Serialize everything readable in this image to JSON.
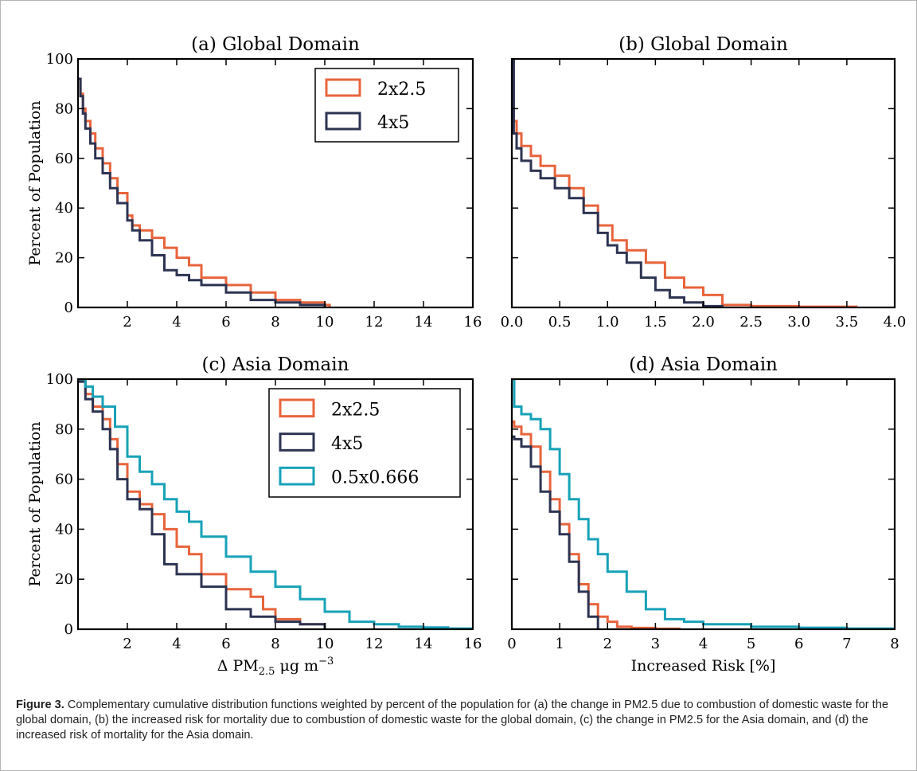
{
  "chart_data": [
    {
      "id": "a",
      "type": "line",
      "title": "(a) Global Domain",
      "xlabel": "",
      "ylabel": "Percent of Population",
      "xlim": [
        0,
        16
      ],
      "ylim": [
        0,
        100
      ],
      "xticks": [
        2,
        4,
        6,
        8,
        10,
        12,
        14,
        16
      ],
      "xtick_labels": [
        "2",
        "4",
        "6",
        "8",
        "10",
        "12",
        "14",
        "16"
      ],
      "yticks": [
        0,
        20,
        40,
        60,
        80,
        100
      ],
      "ytick_labels": [
        "0",
        "20",
        "40",
        "60",
        "80",
        "100"
      ],
      "show_yticklabels": true,
      "step": true,
      "legend": "top-right",
      "series": [
        {
          "name": "2x2.5",
          "color": "#e8643c",
          "x": [
            0,
            0.1,
            0.2,
            0.3,
            0.5,
            0.7,
            1,
            1.3,
            1.6,
            2,
            2.2,
            2.5,
            3,
            3.5,
            4,
            4.5,
            5,
            6,
            7,
            8,
            9,
            10,
            10.2
          ],
          "y": [
            92,
            86,
            80,
            75,
            70,
            64,
            58,
            52,
            46,
            37,
            33,
            31,
            28,
            24,
            20,
            17,
            12,
            9,
            6,
            3,
            2,
            1,
            0
          ]
        },
        {
          "name": "4x5",
          "color": "#2d3452",
          "x": [
            0,
            0.1,
            0.2,
            0.3,
            0.5,
            0.7,
            1,
            1.3,
            1.6,
            2,
            2.2,
            2.5,
            3,
            3.5,
            4,
            4.5,
            5,
            6,
            7,
            8,
            9,
            10
          ],
          "y": [
            92,
            85,
            78,
            72,
            66,
            60,
            54,
            48,
            42,
            35,
            31,
            27,
            21,
            15,
            13,
            11,
            9,
            6,
            3,
            2,
            1,
            0
          ]
        }
      ]
    },
    {
      "id": "b",
      "type": "line",
      "title": "(b) Global Domain",
      "xlabel": "",
      "ylabel": "",
      "xlim": [
        0,
        4
      ],
      "ylim": [
        0,
        100
      ],
      "xticks": [
        0,
        0.5,
        1,
        1.5,
        2,
        2.5,
        3,
        3.5,
        4
      ],
      "xtick_labels": [
        "0.0",
        "0.5",
        "1.0",
        "1.5",
        "2.0",
        "2.5",
        "3.0",
        "3.5",
        "4.0"
      ],
      "yticks": [
        0,
        20,
        40,
        60,
        80,
        100
      ],
      "ytick_labels": [
        "0",
        "20",
        "40",
        "60",
        "80",
        "100"
      ],
      "show_yticklabels": false,
      "step": true,
      "series": [
        {
          "name": "2x2.5",
          "color": "#e8643c",
          "x": [
            0,
            0.02,
            0.05,
            0.1,
            0.2,
            0.3,
            0.45,
            0.6,
            0.75,
            0.9,
            1.05,
            1.2,
            1.4,
            1.6,
            1.8,
            2,
            2.2,
            2.5,
            3,
            3.6
          ],
          "y": [
            100,
            75,
            70,
            65,
            61,
            57,
            53,
            48,
            41,
            33,
            27,
            23,
            18,
            12,
            8,
            5,
            1,
            0.5,
            0.3,
            0
          ]
        },
        {
          "name": "4x5",
          "color": "#2d3452",
          "x": [
            0,
            0.02,
            0.05,
            0.1,
            0.2,
            0.3,
            0.45,
            0.6,
            0.75,
            0.9,
            1,
            1.1,
            1.2,
            1.35,
            1.5,
            1.65,
            1.8,
            2,
            2.2
          ],
          "y": [
            100,
            70,
            64,
            59,
            55,
            52,
            48,
            44,
            38,
            30,
            25,
            22,
            18,
            12,
            7,
            4,
            2,
            0.5,
            0
          ]
        }
      ]
    },
    {
      "id": "c",
      "type": "line",
      "title": "(c) Asia Domain",
      "xlabel": "Δ PM2.5 μg m−3",
      "ylabel": "Percent of Population",
      "xlim": [
        0,
        16
      ],
      "ylim": [
        0,
        100
      ],
      "xticks": [
        2,
        4,
        6,
        8,
        10,
        12,
        14,
        16
      ],
      "xtick_labels": [
        "2",
        "4",
        "6",
        "8",
        "10",
        "12",
        "14",
        "16"
      ],
      "yticks": [
        0,
        20,
        40,
        60,
        80,
        100
      ],
      "ytick_labels": [
        "0",
        "20",
        "40",
        "60",
        "80",
        "100"
      ],
      "show_yticklabels": true,
      "step": true,
      "legend": "top-right",
      "series": [
        {
          "name": "2x2.5",
          "color": "#e8643c",
          "x": [
            0,
            0.3,
            0.6,
            1,
            1.3,
            1.6,
            2,
            2.5,
            3,
            3.5,
            4,
            4.5,
            5,
            6,
            7,
            7.5,
            8,
            9,
            10
          ],
          "y": [
            99,
            94,
            89,
            84,
            76,
            66,
            55,
            50,
            46,
            40,
            33,
            30,
            22,
            16,
            13,
            8,
            4,
            2,
            0
          ]
        },
        {
          "name": "4x5",
          "color": "#2d3452",
          "x": [
            0,
            0.3,
            0.6,
            1,
            1.3,
            1.6,
            2,
            2.5,
            3,
            3.5,
            4,
            5,
            6,
            7,
            8,
            9,
            10
          ],
          "y": [
            99,
            92,
            87,
            80,
            72,
            60,
            52,
            48,
            38,
            26,
            22,
            17,
            8,
            5,
            3,
            2,
            0
          ]
        },
        {
          "name": "0.5x0.666",
          "color": "#17a2b8",
          "x": [
            0,
            0.3,
            0.6,
            1,
            1.5,
            2,
            2.5,
            3,
            3.5,
            4,
            4.5,
            5,
            6,
            7,
            8,
            9,
            10,
            11,
            12,
            13,
            14,
            15,
            16
          ],
          "y": [
            100,
            97,
            93,
            89,
            81,
            69,
            63,
            58,
            52,
            47,
            43,
            37,
            29,
            23,
            17,
            12,
            7,
            3,
            2,
            1,
            0.7,
            0.3,
            0
          ]
        }
      ]
    },
    {
      "id": "d",
      "type": "line",
      "title": "(d) Asia Domain",
      "xlabel": "Increased Risk [%]",
      "ylabel": "",
      "xlim": [
        0,
        8
      ],
      "ylim": [
        0,
        100
      ],
      "xticks": [
        0,
        1,
        2,
        3,
        4,
        5,
        6,
        7,
        8
      ],
      "xtick_labels": [
        "0",
        "1",
        "2",
        "3",
        "4",
        "5",
        "6",
        "7",
        "8"
      ],
      "yticks": [
        0,
        20,
        40,
        60,
        80,
        100
      ],
      "ytick_labels": [
        "0",
        "20",
        "40",
        "60",
        "80",
        "100"
      ],
      "show_yticklabels": false,
      "step": true,
      "series": [
        {
          "name": "2x2.5",
          "color": "#e8643c",
          "x": [
            0,
            0.05,
            0.2,
            0.4,
            0.6,
            0.8,
            1,
            1.2,
            1.4,
            1.6,
            1.8,
            2,
            2.2,
            2.5,
            3,
            3.5
          ],
          "y": [
            83,
            81,
            78,
            73,
            63,
            52,
            42,
            30,
            18,
            10,
            5,
            3,
            1,
            0.5,
            0.2,
            0
          ]
        },
        {
          "name": "4x5",
          "color": "#2d3452",
          "x": [
            0,
            0.05,
            0.2,
            0.4,
            0.6,
            0.8,
            1,
            1.2,
            1.4,
            1.6,
            1.8
          ],
          "y": [
            77,
            76,
            73,
            65,
            55,
            47,
            38,
            27,
            15,
            5,
            0
          ]
        },
        {
          "name": "0.5x0.666",
          "color": "#17a2b8",
          "x": [
            0,
            0.05,
            0.2,
            0.4,
            0.6,
            0.8,
            1,
            1.2,
            1.4,
            1.6,
            1.8,
            2,
            2.4,
            2.8,
            3.2,
            3.6,
            4,
            5,
            6,
            7,
            8
          ],
          "y": [
            100,
            89,
            86,
            84,
            80,
            72,
            62,
            52,
            44,
            36,
            30,
            23,
            15,
            8,
            4,
            3,
            2,
            1,
            0.6,
            0.3,
            0
          ]
        }
      ]
    }
  ],
  "caption": {
    "figure_label": "Figure 3.",
    "text": "Complementary cumulative distribution functions weighted by percent of the population for (a) the change in PM2.5 due to combustion of domestic waste for the global domain, (b) the increased risk for mortality due to combustion of domestic waste for the global domain, (c) the change in PM2.5 for the Asia domain, and (d) the increased risk of mortality for the Asia domain."
  }
}
